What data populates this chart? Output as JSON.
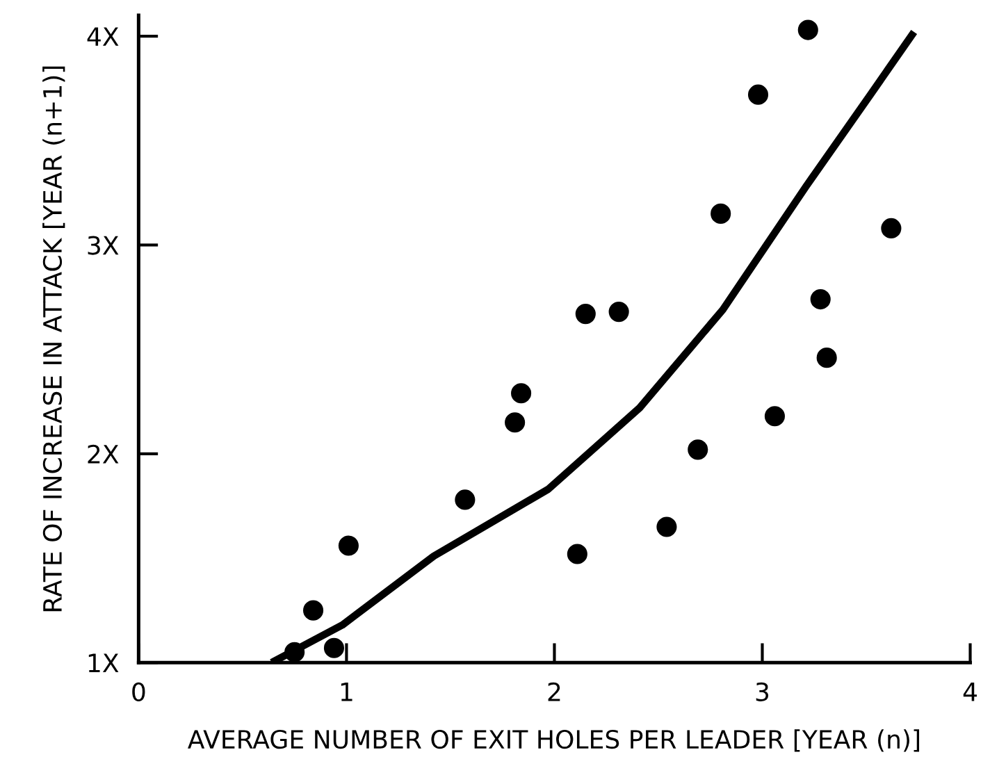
{
  "chart_data": {
    "type": "scatter",
    "xlabel": "AVERAGE NUMBER OF EXIT HOLES PER LEADER [YEAR (n)]",
    "ylabel": "RATE OF INCREASE IN ATTACK [YEAR (n+1)]",
    "xlim": [
      0,
      4
    ],
    "xticks": [
      0,
      1,
      2,
      3,
      4
    ],
    "ylim": [
      1,
      4.1
    ],
    "yticks": [
      {
        "value": 1,
        "label": "1X"
      },
      {
        "value": 2,
        "label": "2X"
      },
      {
        "value": 3,
        "label": "3X"
      },
      {
        "value": 4,
        "label": "4X"
      }
    ],
    "grid": false,
    "legend": false,
    "series": [
      {
        "marker": "circle",
        "color": "#000000",
        "x": [
          0.75,
          0.84,
          0.94,
          1.01,
          1.57,
          1.81,
          1.84,
          2.15,
          2.31,
          2.11,
          2.54,
          2.69,
          2.8,
          2.98,
          3.22,
          3.06,
          3.28,
          3.31,
          3.62
        ],
        "values": [
          1.05,
          1.25,
          1.07,
          1.56,
          1.78,
          2.15,
          2.29,
          2.67,
          2.68,
          1.52,
          1.65,
          2.02,
          3.15,
          3.72,
          4.03,
          2.18,
          2.74,
          2.46,
          3.08
        ]
      },
      {
        "type": "line",
        "color": "#000000",
        "marker": "none",
        "line_style": "solid",
        "x": [
          0.64,
          0.98,
          1.42,
          1.97,
          2.41,
          2.81,
          3.21,
          3.52,
          3.73
        ],
        "values": [
          1.0,
          1.18,
          1.51,
          1.83,
          2.22,
          2.69,
          3.28,
          3.72,
          4.02
        ]
      }
    ]
  }
}
